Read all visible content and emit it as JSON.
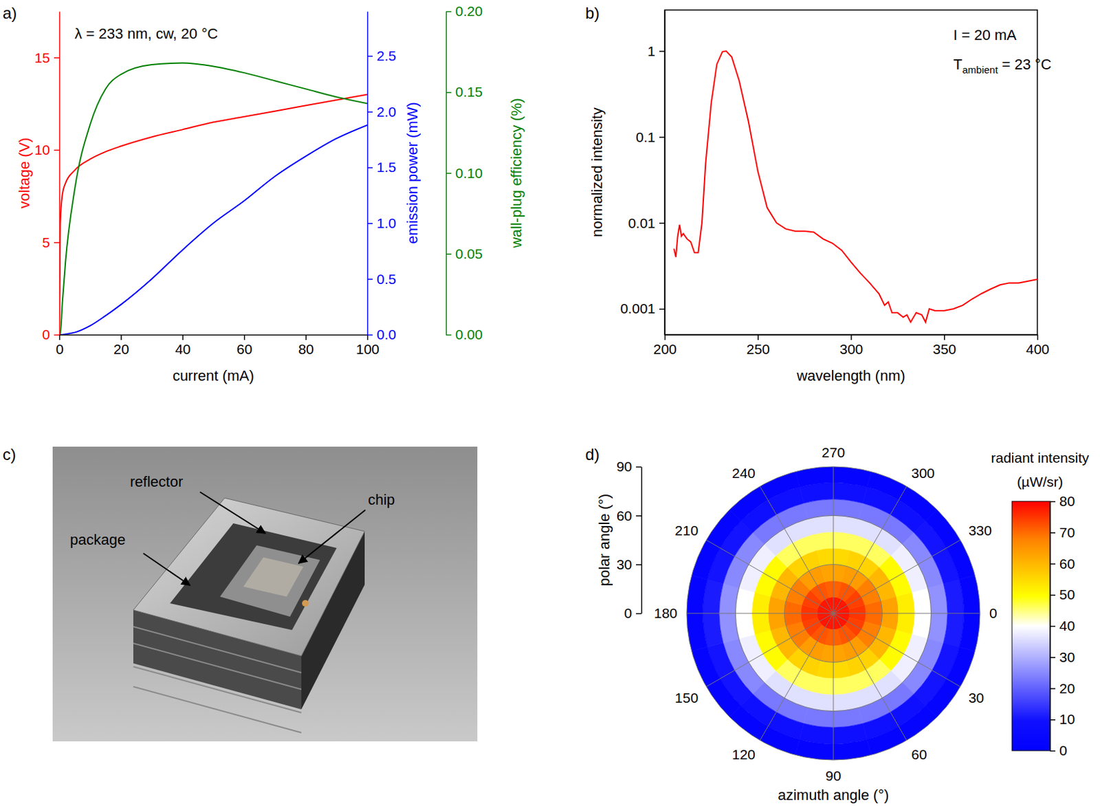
{
  "chart_data": [
    {
      "type": "line",
      "panel": "a)",
      "annotation": "λ = 233 nm, cw, 20 °C",
      "xlabel": "current (mA)",
      "ylabel": "voltage (V)",
      "y2label": "emission power (mW)",
      "y3label": "wall-plug efficiency (%)",
      "x": [
        0,
        0.3,
        1,
        2,
        5,
        10,
        15,
        20,
        30,
        40,
        50,
        60,
        70,
        80,
        90,
        100
      ],
      "xlim": [
        0,
        100
      ],
      "xticks": [
        0,
        20,
        40,
        60,
        80,
        100
      ],
      "ylim": [
        0,
        17.5
      ],
      "yticks": [
        0,
        5,
        10,
        15
      ],
      "y2lim": [
        0,
        2.9
      ],
      "y2ticks": [
        {
          "value": 0,
          "label": "0.0"
        },
        {
          "value": 0.5,
          "label": "0.5"
        },
        {
          "value": 1,
          "label": "1.0"
        },
        {
          "value": 1.5,
          "label": "1.5"
        },
        {
          "value": 2,
          "label": "2.0"
        },
        {
          "value": 2.5,
          "label": "2.5"
        }
      ],
      "y3lim": [
        0,
        0.2
      ],
      "y3ticks": [
        {
          "value": 0,
          "label": "0.00"
        },
        {
          "value": 0.05,
          "label": "0.05"
        },
        {
          "value": 0.1,
          "label": "0.10"
        },
        {
          "value": 0.15,
          "label": "0.15"
        },
        {
          "value": 0.2,
          "label": "0.20"
        }
      ],
      "series": [
        {
          "color": "#ff0000",
          "values": [
            0,
            6,
            7.6,
            8.2,
            8.9,
            9.5,
            9.9,
            10.2,
            10.7,
            11.1,
            11.5,
            11.8,
            12.1,
            12.4,
            12.7,
            13.0
          ]
        },
        {
          "color": "#0000ff",
          "axis": "y2",
          "values": [
            0,
            0,
            0,
            0.005,
            0.02,
            0.08,
            0.17,
            0.27,
            0.5,
            0.76,
            1.0,
            1.2,
            1.42,
            1.6,
            1.76,
            1.88
          ]
        },
        {
          "color": "#008000",
          "axis": "y3",
          "values": [
            0,
            0,
            0.02,
            0.045,
            0.09,
            0.13,
            0.152,
            0.161,
            0.167,
            0.168,
            0.166,
            0.162,
            0.157,
            0.152,
            0.147,
            0.143
          ]
        }
      ]
    },
    {
      "type": "line",
      "panel": "b)",
      "log": "y",
      "annotations": [
        {
          "text": "I = 20 mA"
        },
        {
          "text": "T",
          "subscript": "ambient",
          "suffix": "= 23 °C"
        }
      ],
      "xlabel": "wavelength (nm)",
      "ylabel": "normalized intensity",
      "color": "#ff0000",
      "x": [
        205,
        206,
        207,
        208,
        209,
        210,
        212,
        214,
        216,
        218,
        220,
        222,
        225,
        228,
        231,
        233,
        236,
        240,
        245,
        250,
        255,
        260,
        265,
        270,
        275,
        280,
        285,
        290,
        295,
        300,
        305,
        310,
        315,
        318,
        320,
        322,
        325,
        328,
        330,
        332,
        335,
        338,
        340,
        342,
        345,
        350,
        355,
        360,
        365,
        370,
        375,
        380,
        385,
        390,
        395,
        400
      ],
      "values": [
        0.005,
        0.004,
        0.007,
        0.0095,
        0.007,
        0.0075,
        0.0065,
        0.006,
        0.0045,
        0.0045,
        0.01,
        0.05,
        0.25,
        0.7,
        0.98,
        1.0,
        0.85,
        0.45,
        0.15,
        0.04,
        0.015,
        0.01,
        0.0085,
        0.008,
        0.008,
        0.0078,
        0.0065,
        0.0058,
        0.0048,
        0.0035,
        0.0026,
        0.002,
        0.0015,
        0.0011,
        0.0012,
        0.0009,
        0.0009,
        0.0008,
        0.00085,
        0.0007,
        0.0009,
        0.00085,
        0.0007,
        0.001,
        0.00095,
        0.00095,
        0.001,
        0.0011,
        0.0013,
        0.0015,
        0.0017,
        0.0019,
        0.002,
        0.002,
        0.0021,
        0.0022
      ],
      "xlim": [
        200,
        400
      ],
      "xticks": [
        200,
        250,
        300,
        350,
        400
      ],
      "ylim": [
        0.0005,
        3
      ],
      "yticks": [
        0.001,
        0.01,
        0.1,
        1
      ]
    },
    {
      "type": "image",
      "panel": "c)",
      "labels": [
        "reflector",
        "chip",
        "package"
      ]
    },
    {
      "type": "polar_heatmap",
      "panel": "d)",
      "xlabel": "azimuth angle (°)",
      "ylabel": "polar angle (°)",
      "xlim": [
        0,
        360
      ],
      "xticks": [
        0,
        30,
        60,
        90,
        120,
        150,
        180,
        210,
        240,
        270,
        300,
        330
      ],
      "ylim": [
        0,
        90
      ],
      "yticks": [
        0,
        30,
        60,
        90
      ],
      "polar_edges": [
        0,
        10,
        20,
        30,
        40,
        50,
        60,
        70,
        80,
        90
      ],
      "azimuth_centers": [
        0,
        30,
        60,
        90,
        120,
        150,
        180,
        210,
        240,
        270,
        300,
        330
      ],
      "cells": [
        [
          78,
          75,
          70,
          63,
          52,
          40,
          26,
          11,
          3
        ],
        [
          78,
          74,
          68,
          60,
          50,
          38,
          25,
          10,
          3
        ],
        [
          78,
          72,
          64,
          56,
          46,
          36,
          23,
          9,
          3
        ],
        [
          78,
          71,
          63,
          55,
          46,
          36,
          23,
          9,
          3
        ],
        [
          78,
          72,
          64,
          56,
          46,
          36,
          23,
          9,
          3
        ],
        [
          78,
          74,
          68,
          60,
          50,
          38,
          25,
          10,
          3
        ],
        [
          78,
          75,
          70,
          63,
          52,
          40,
          26,
          11,
          3
        ],
        [
          78,
          74,
          68,
          60,
          50,
          38,
          25,
          10,
          3
        ],
        [
          78,
          72,
          64,
          56,
          46,
          36,
          23,
          9,
          3
        ],
        [
          78,
          71,
          63,
          55,
          46,
          36,
          23,
          9,
          3
        ],
        [
          78,
          72,
          64,
          56,
          46,
          36,
          23,
          9,
          3
        ],
        [
          78,
          74,
          68,
          60,
          50,
          38,
          25,
          10,
          3
        ]
      ],
      "colorbar": {
        "title": "radiant intensity",
        "unit": "(µW/sr)",
        "range": [
          0,
          80
        ],
        "ticks": [
          0,
          10,
          20,
          30,
          40,
          50,
          60,
          70,
          80
        ]
      }
    }
  ]
}
